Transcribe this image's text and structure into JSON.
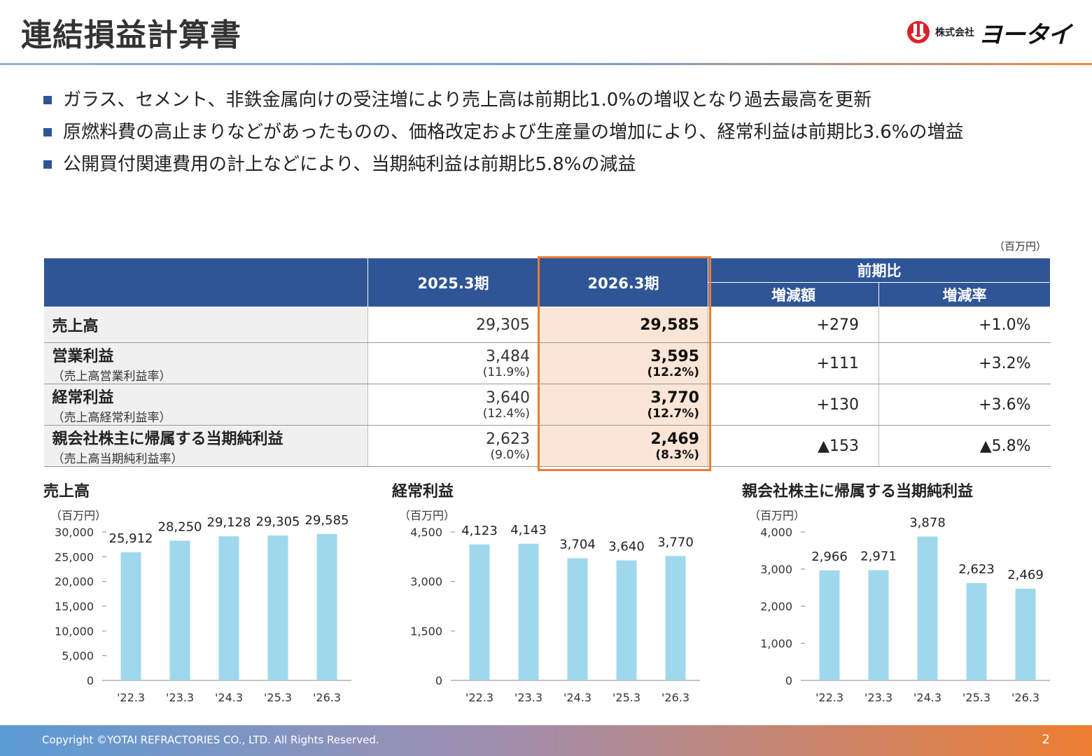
{
  "header": {
    "title": "連結損益計算書",
    "logo_small": "株式会社",
    "logo_name": "ヨータイ"
  },
  "bullets": [
    "ガラス、セメント、非鉄金属向けの受注増により売上高は前期比1.0%の増収となり過去最高を更新",
    "原燃料費の高止まりなどがあったものの、価格改定および生産量の増加により、経常利益は前期比3.6%の増益",
    "公開買付関連費用の計上などにより、当期純利益は前期比5.8%の減益"
  ],
  "table": {
    "unit": "（百万円）",
    "col_prev": "2025.3期",
    "col_cur": "2026.3期",
    "col_group": "前期比",
    "col_diff": "増減額",
    "col_rate": "増減率",
    "rows": [
      {
        "label": "売上高",
        "sublabel": "",
        "prev": "29,305",
        "prev_pct": "",
        "cur": "29,585",
        "cur_pct": "",
        "diff": "+279",
        "rate": "+1.0%"
      },
      {
        "label": "営業利益",
        "sublabel": "（売上高営業利益率）",
        "prev": "3,484",
        "prev_pct": "(11.9%)",
        "cur": "3,595",
        "cur_pct": "(12.2%)",
        "diff": "+111",
        "rate": "+3.2%"
      },
      {
        "label": "経常利益",
        "sublabel": "（売上高経常利益率）",
        "prev": "3,640",
        "prev_pct": "(12.4%)",
        "cur": "3,770",
        "cur_pct": "(12.7%)",
        "diff": "+130",
        "rate": "+3.6%"
      },
      {
        "label": "親会社株主に帰属する当期純利益",
        "sublabel": "（売上高当期純利益率）",
        "prev": "2,623",
        "prev_pct": "(9.0%)",
        "cur": "2,469",
        "cur_pct": "(8.3%)",
        "diff": "▲153",
        "rate": "▲5.8%"
      }
    ]
  },
  "chart_data": [
    {
      "type": "bar",
      "title": "売上高",
      "ylabel": "（百万円）",
      "categories": [
        "'22.3",
        "'23.3",
        "'24.3",
        "'25.3",
        "'26.3"
      ],
      "values": [
        25912,
        28250,
        29128,
        29305,
        29585
      ],
      "value_labels": [
        "25,912",
        "28,250",
        "29,128",
        "29,305",
        "29,585"
      ],
      "ylim": [
        0,
        30000
      ],
      "yticks": [
        0,
        5000,
        10000,
        15000,
        20000,
        25000,
        30000
      ],
      "ytick_labels": [
        "0",
        "5,000",
        "10,000",
        "15,000",
        "20,000",
        "25,000",
        "30,000"
      ],
      "color": "#9fd8ec",
      "grid": false
    },
    {
      "type": "bar",
      "title": "経常利益",
      "ylabel": "（百万円）",
      "categories": [
        "'22.3",
        "'23.3",
        "'24.3",
        "'25.3",
        "'26.3"
      ],
      "values": [
        4123,
        4143,
        3704,
        3640,
        3770
      ],
      "value_labels": [
        "4,123",
        "4,143",
        "3,704",
        "3,640",
        "3,770"
      ],
      "ylim": [
        0,
        4500
      ],
      "yticks": [
        0,
        1500,
        3000,
        4500
      ],
      "ytick_labels": [
        "0",
        "1,500",
        "3,000",
        "4,500"
      ],
      "color": "#9fd8ec",
      "grid": false
    },
    {
      "type": "bar",
      "title": "親会社株主に帰属する当期純利益",
      "ylabel": "（百万円）",
      "categories": [
        "'22.3",
        "'23.3",
        "'24.3",
        "'25.3",
        "'26.3"
      ],
      "values": [
        2966,
        2971,
        3878,
        2623,
        2469
      ],
      "value_labels": [
        "2,966",
        "2,971",
        "3,878",
        "2,623",
        "2,469"
      ],
      "ylim": [
        0,
        4000
      ],
      "yticks": [
        0,
        1000,
        2000,
        3000,
        4000
      ],
      "ytick_labels": [
        "0",
        "1,000",
        "2,000",
        "3,000",
        "4,000"
      ],
      "color": "#9fd8ec",
      "grid": false
    }
  ],
  "footer": {
    "copyright": "Copyright ©YOTAI REFRACTORIES CO., LTD. All Rights Reserved.",
    "page": "2"
  },
  "colors": {
    "header_blue": "#2f5597",
    "highlight_orange": "#ed7d31",
    "highlight_fill": "#fbe5d6",
    "bar": "#9fd8ec"
  }
}
